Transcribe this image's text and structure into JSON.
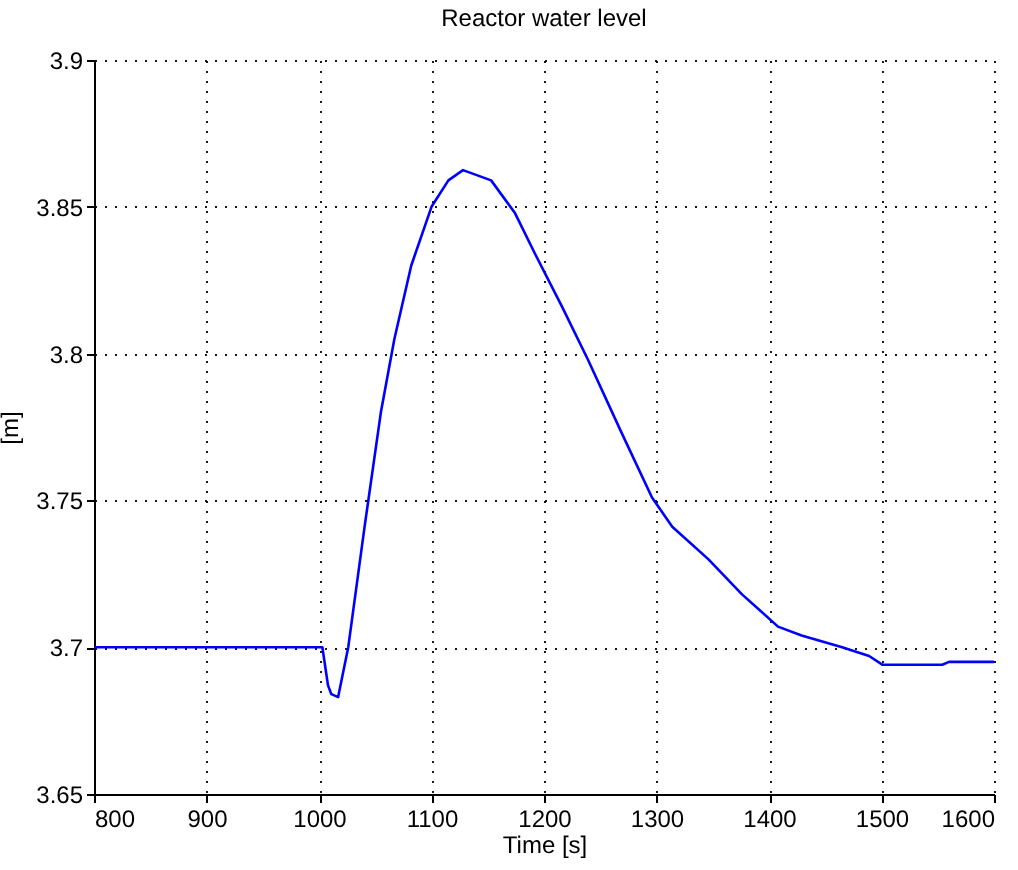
{
  "chart_data": {
    "type": "line",
    "title": "Reactor water level",
    "xlabel": "Time [s]",
    "ylabel": "[m]",
    "x": [
      800,
      1003,
      1008,
      1011,
      1017,
      1026,
      1040.5,
      1055,
      1067,
      1082,
      1100,
      1115,
      1128,
      1153,
      1174,
      1192,
      1216,
      1239,
      1269,
      1296,
      1314,
      1346,
      1376,
      1408,
      1429,
      1465,
      1489,
      1501,
      1554,
      1560,
      1600
    ],
    "series": [
      {
        "color": "#0000ff",
        "values": [
          3.7,
          3.7,
          3.687,
          3.684,
          3.683,
          3.7,
          3.741,
          3.78,
          3.805,
          3.83,
          3.85,
          3.859,
          3.8625,
          3.859,
          3.848,
          3.834,
          3.816,
          3.798,
          3.773,
          3.751,
          3.741,
          3.73,
          3.718,
          3.707,
          3.704,
          3.7,
          3.697,
          3.694,
          3.694,
          3.695,
          3.695
        ]
      }
    ],
    "xlim": [
      800,
      1600
    ],
    "xticks": [
      800,
      900,
      1000,
      1100,
      1200,
      1300,
      1400,
      1500,
      1600
    ],
    "ylim": [
      3.65,
      3.9
    ],
    "yticks": [
      3.65,
      3.7,
      3.75,
      3.8,
      3.85,
      3.9
    ],
    "grid": true,
    "line_style": "solid",
    "marker": "none"
  }
}
